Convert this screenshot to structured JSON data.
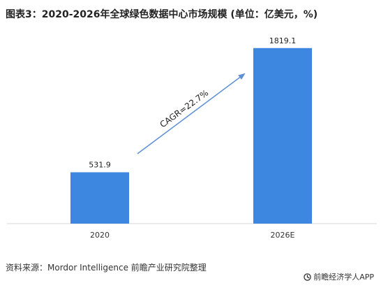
{
  "chart_data": {
    "type": "bar",
    "title": "图表3：2020-2026年全球绿色数据中心市场规模 (单位：亿美元，%)",
    "categories": [
      "2020",
      "2026E"
    ],
    "values": [
      531.9,
      1819.1
    ],
    "value_labels": [
      "531.9",
      "1819.1"
    ],
    "bar_color": "#3d87e0",
    "annotation": "CAGR=22.7%",
    "arrow_color": "#5b8fd6",
    "ylim": [
      0,
      2100
    ],
    "grid": false
  },
  "footer": {
    "source": "资料来源：Mordor Intelligence 前瞻产业研究院整理",
    "brand_icon": "qianzhan-logo-icon",
    "brand": "前瞻经济学人APP"
  }
}
